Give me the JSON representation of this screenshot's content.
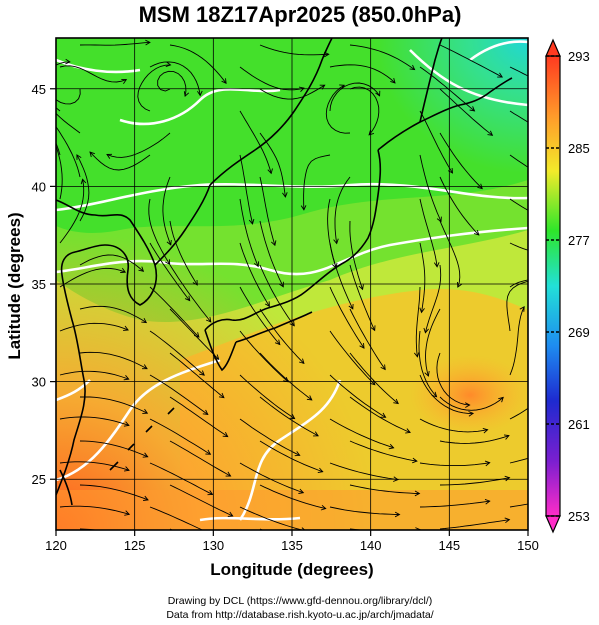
{
  "title": "MSM 18Z17Apr2025 (850.0hPa)",
  "xlabel": "Longitude (degrees)",
  "ylabel": "Latitude  (degrees)",
  "x_ticks": [
    "120",
    "125",
    "130",
    "135",
    "140",
    "145",
    "150"
  ],
  "y_ticks": [
    "25",
    "30",
    "35",
    "40",
    "45"
  ],
  "colorbar_ticks": [
    "293",
    "285",
    "277",
    "269",
    "261",
    "253"
  ],
  "credits": {
    "line1": "Drawing by DCL (https://www.gfd-dennou.org/library/dcl/)",
    "line2": "Data from http://database.rish.kyoto-u.ac.jp/arch/jmadata/"
  },
  "map": {
    "lon_range": [
      120,
      150
    ],
    "lat_range": [
      22.4,
      47.6
    ],
    "grid_lon": [
      125,
      130,
      135,
      140,
      145
    ],
    "grid_lat": [
      25,
      30,
      35,
      40,
      45
    ],
    "colorbar_range": [
      253,
      293
    ],
    "colors": {
      "warm": "#ff6a2a",
      "mid": "#f5e52a",
      "cool": "#2ee62a",
      "cold": "#22d8d0",
      "coast": "#000000",
      "isotherm": "#ffffff"
    }
  }
}
